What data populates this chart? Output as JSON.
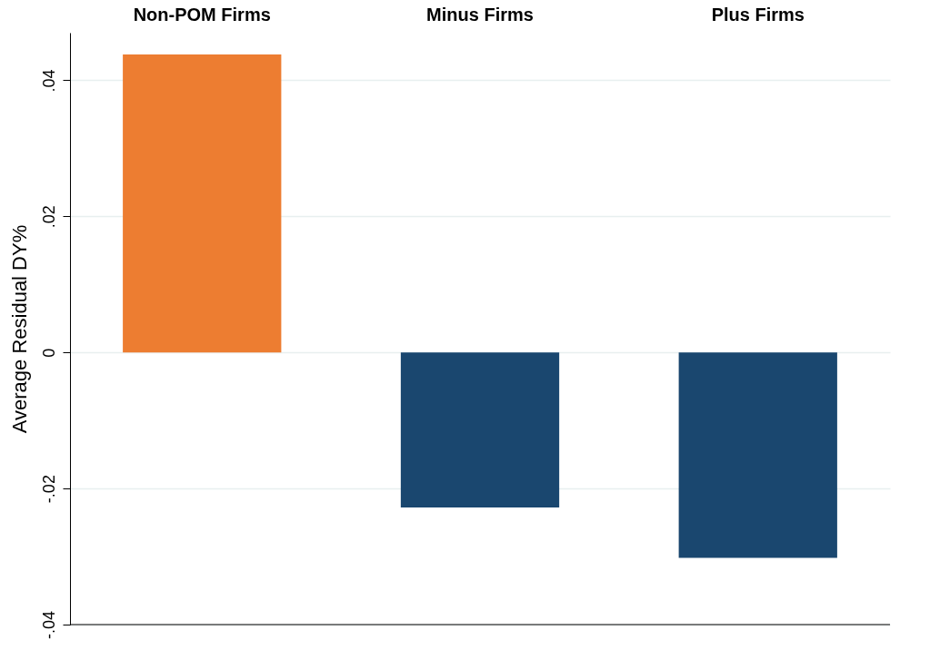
{
  "chart_data": {
    "type": "bar",
    "ylabel": "Average Residual DY%",
    "categories": [
      "Non-POM Firms",
      "Minus Firms",
      "Plus Firms"
    ],
    "values": [
      0.0438,
      -0.0228,
      -0.0302
    ],
    "colors": [
      "#ed7d31",
      "#1a476f",
      "#1a476f"
    ],
    "ylim": [
      -0.04,
      0.047
    ],
    "yticks": [
      {
        "value": -0.04,
        "label": "-.04"
      },
      {
        "value": -0.02,
        "label": "-.02"
      },
      {
        "value": 0,
        "label": "0"
      },
      {
        "value": 0.02,
        "label": ".02"
      },
      {
        "value": 0.04,
        "label": ".04"
      }
    ],
    "grid": "y"
  }
}
